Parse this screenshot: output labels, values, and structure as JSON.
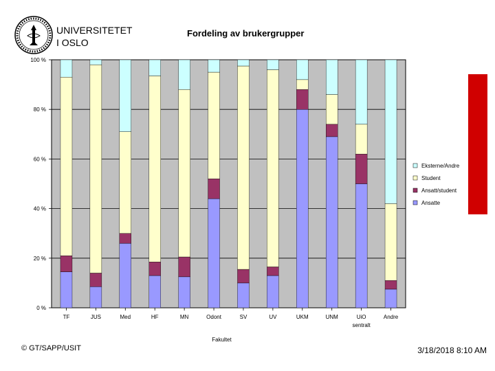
{
  "header": {
    "org_line1": "UNIVERSITETET",
    "org_line2": "I OSLO",
    "logo_icon": "university-seal-icon"
  },
  "footer": {
    "left": "© GT/SAPP/USIT",
    "right": "3/18/2018 8:10 AM"
  },
  "colors": {
    "plot_bg": "#c0c0c0",
    "ansatte": "#9999ff",
    "ansatt_student": "#993366",
    "student": "#ffffcc",
    "eksterne": "#ccffff",
    "accent_red": "#d00000"
  },
  "chart_data": {
    "type": "bar",
    "stacked": true,
    "title": "Fordeling av brukergrupper",
    "xlabel": "Fakultet",
    "ylabel": "",
    "ylim": [
      0,
      100
    ],
    "yticks": [
      "0 %",
      "20 %",
      "40 %",
      "60 %",
      "80 %",
      "100 %"
    ],
    "grid": true,
    "legend_position": "right",
    "categories": [
      "TF",
      "JUS",
      "Med",
      "HF",
      "MN",
      "Odont",
      "SV",
      "UV",
      "UKM",
      "UNM",
      "UiO\nsentralt",
      "Andre"
    ],
    "series": [
      {
        "name": "Ansatte",
        "values": [
          14.5,
          8.5,
          26,
          13,
          12.5,
          44,
          10,
          13,
          80,
          69,
          50,
          7.5
        ]
      },
      {
        "name": "Ansatt/student",
        "values": [
          6.5,
          5.5,
          4,
          5.5,
          8,
          8,
          5.5,
          3.5,
          8,
          5,
          12,
          3.5
        ]
      },
      {
        "name": "Student",
        "values": [
          72,
          84,
          41,
          75,
          67.5,
          43,
          82,
          79.5,
          4,
          12,
          12,
          31
        ]
      },
      {
        "name": "Eksterne/Andre",
        "values": [
          7,
          2,
          29,
          6.5,
          12,
          5,
          2.5,
          4,
          8,
          14,
          26,
          58
        ]
      }
    ],
    "legend": [
      "Eksterne/Andre",
      "Student",
      "Ansatt/student",
      "Ansatte"
    ]
  }
}
